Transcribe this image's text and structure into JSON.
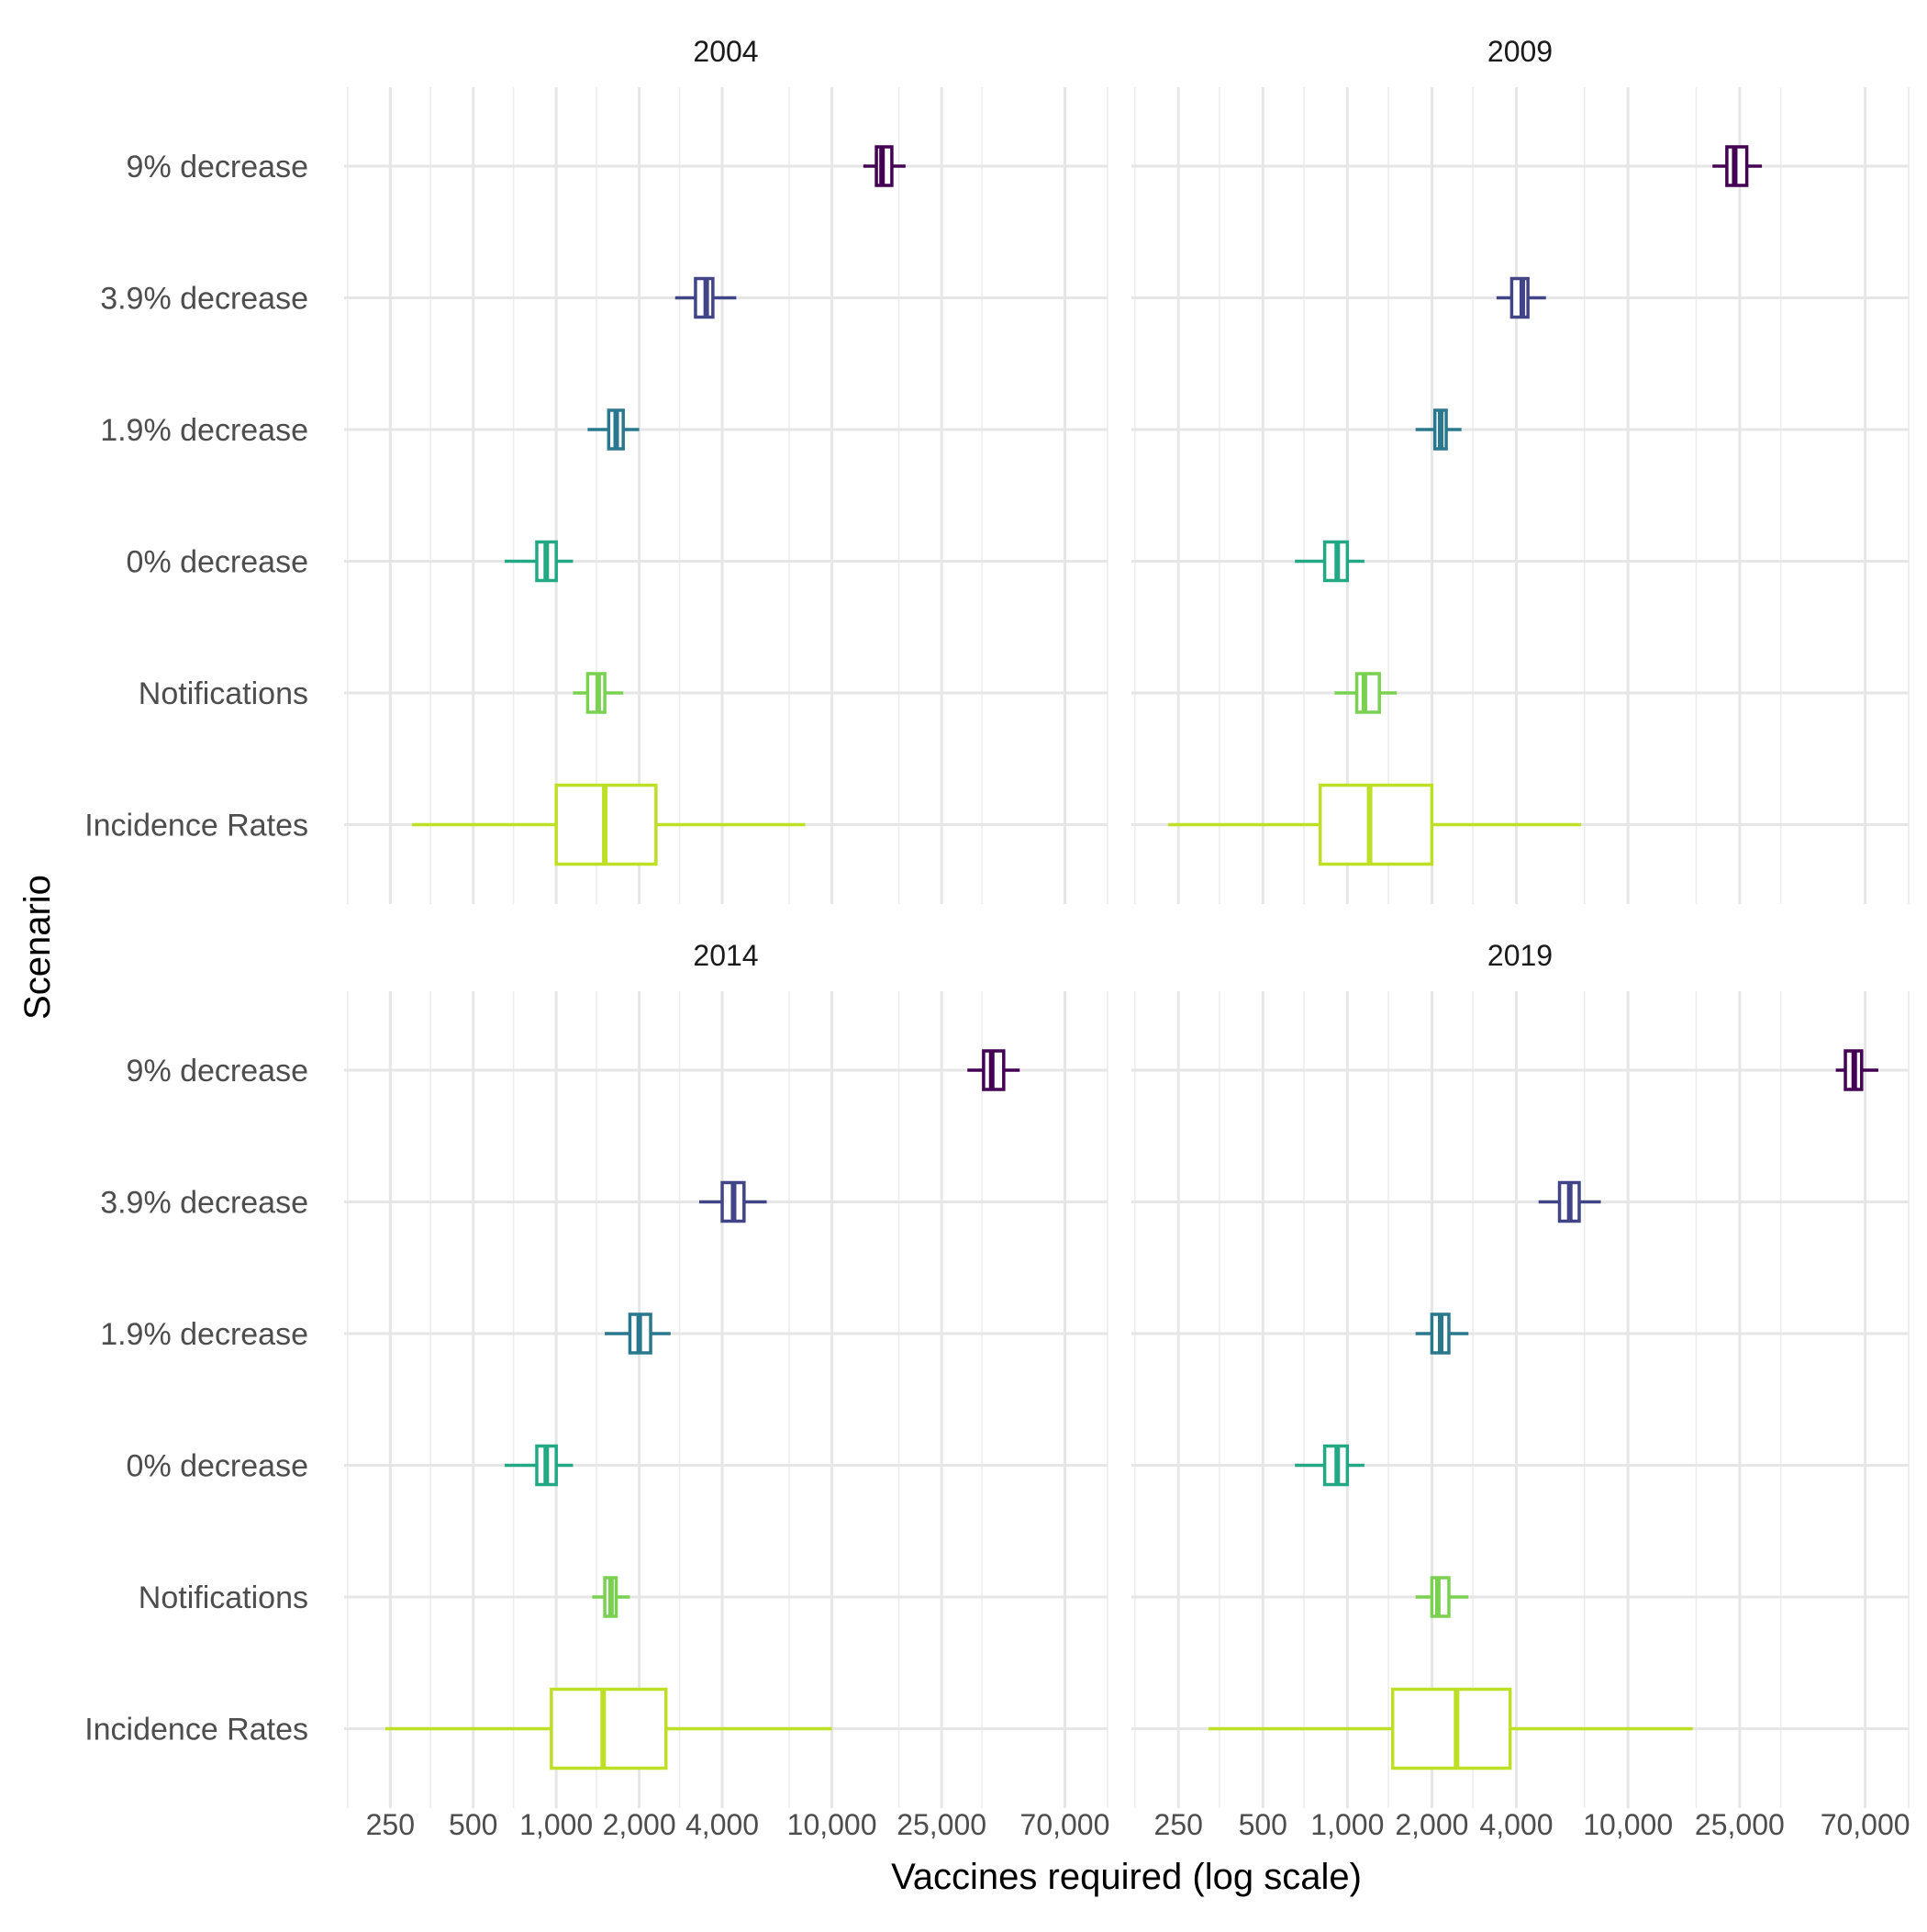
{
  "chart_data": {
    "type": "boxplot",
    "facet_by": "year",
    "xlabel": "Vaccines required (log scale)",
    "ylabel": "Scenario",
    "x_scale": "log10",
    "xlim": [
      170,
      100000
    ],
    "x_ticks": [
      250,
      500,
      1000,
      2000,
      4000,
      10000,
      25000,
      70000
    ],
    "x_tick_labels": [
      "250",
      "500",
      "1,000",
      "2,000",
      "4,000",
      "10,000",
      "25,000",
      "70,000"
    ],
    "x_minor_ticks": [
      175,
      350,
      700,
      1400,
      2800,
      7000,
      17500,
      35000,
      100000
    ],
    "grid": true,
    "legend": "none",
    "categories": [
      "9% decrease",
      "3.9% decrease",
      "1.9% decrease",
      "0% decrease",
      "Notifications",
      "Incidence Rates"
    ],
    "colors": {
      "9% decrease": "#440154",
      "3.9% decrease": "#414487",
      "1.9% decrease": "#2a788e",
      "0% decrease": "#22a884",
      "Notifications": "#7ad151",
      "Incidence Rates": "#bddf26"
    },
    "panels": [
      {
        "title": "2004",
        "boxes": [
          {
            "category": "9% decrease",
            "whisker_low": 13000,
            "q1": 14500,
            "median": 15200,
            "q3": 16500,
            "whisker_high": 18500
          },
          {
            "category": "3.9% decrease",
            "whisker_low": 2700,
            "q1": 3200,
            "median": 3500,
            "q3": 3700,
            "whisker_high": 4500
          },
          {
            "category": "1.9% decrease",
            "whisker_low": 1300,
            "q1": 1550,
            "median": 1650,
            "q3": 1750,
            "whisker_high": 2000
          },
          {
            "category": "0% decrease",
            "whisker_low": 650,
            "q1": 850,
            "median": 920,
            "q3": 1000,
            "whisker_high": 1150
          },
          {
            "category": "Notifications",
            "whisker_low": 1150,
            "q1": 1300,
            "median": 1420,
            "q3": 1500,
            "whisker_high": 1750
          },
          {
            "category": "Incidence Rates",
            "whisker_low": 300,
            "q1": 1000,
            "median": 1500,
            "q3": 2300,
            "whisker_high": 8000
          }
        ]
      },
      {
        "title": "2009",
        "boxes": [
          {
            "category": "9% decrease",
            "whisker_low": 20000,
            "q1": 22500,
            "median": 24000,
            "q3": 26500,
            "whisker_high": 30000
          },
          {
            "category": "3.9% decrease",
            "whisker_low": 3400,
            "q1": 3850,
            "median": 4200,
            "q3": 4400,
            "whisker_high": 5100
          },
          {
            "category": "1.9% decrease",
            "whisker_low": 1750,
            "q1": 2050,
            "median": 2150,
            "q3": 2250,
            "whisker_high": 2550
          },
          {
            "category": "0% decrease",
            "whisker_low": 650,
            "q1": 830,
            "median": 920,
            "q3": 1000,
            "whisker_high": 1150
          },
          {
            "category": "Notifications",
            "whisker_low": 900,
            "q1": 1080,
            "median": 1150,
            "q3": 1300,
            "whisker_high": 1500
          },
          {
            "category": "Incidence Rates",
            "whisker_low": 230,
            "q1": 800,
            "median": 1200,
            "q3": 2000,
            "whisker_high": 6800
          }
        ]
      },
      {
        "title": "2014",
        "boxes": [
          {
            "category": "9% decrease",
            "whisker_low": 31000,
            "q1": 35500,
            "median": 38000,
            "q3": 42000,
            "whisker_high": 48000
          },
          {
            "category": "3.9% decrease",
            "whisker_low": 3300,
            "q1": 4000,
            "median": 4400,
            "q3": 4800,
            "whisker_high": 5800
          },
          {
            "category": "1.9% decrease",
            "whisker_low": 1500,
            "q1": 1850,
            "median": 2000,
            "q3": 2200,
            "whisker_high": 2600
          },
          {
            "category": "0% decrease",
            "whisker_low": 650,
            "q1": 850,
            "median": 920,
            "q3": 1000,
            "whisker_high": 1150
          },
          {
            "category": "Notifications",
            "whisker_low": 1350,
            "q1": 1500,
            "median": 1580,
            "q3": 1650,
            "whisker_high": 1850
          },
          {
            "category": "Incidence Rates",
            "whisker_low": 240,
            "q1": 960,
            "median": 1480,
            "q3": 2500,
            "whisker_high": 10000
          }
        ]
      },
      {
        "title": "2019",
        "boxes": [
          {
            "category": "9% decrease",
            "whisker_low": 55000,
            "q1": 59500,
            "median": 64000,
            "q3": 68000,
            "whisker_high": 78000
          },
          {
            "category": "3.9% decrease",
            "whisker_low": 4800,
            "q1": 5700,
            "median": 6200,
            "q3": 6700,
            "whisker_high": 8000
          },
          {
            "category": "1.9% decrease",
            "whisker_low": 1750,
            "q1": 2000,
            "median": 2150,
            "q3": 2300,
            "whisker_high": 2700
          },
          {
            "category": "0% decrease",
            "whisker_low": 650,
            "q1": 830,
            "median": 920,
            "q3": 1000,
            "whisker_high": 1150
          },
          {
            "category": "Notifications",
            "whisker_low": 1750,
            "q1": 2000,
            "median": 2100,
            "q3": 2300,
            "whisker_high": 2700
          },
          {
            "category": "Incidence Rates",
            "whisker_low": 320,
            "q1": 1450,
            "median": 2450,
            "q3": 3800,
            "whisker_high": 17000
          }
        ]
      }
    ]
  }
}
